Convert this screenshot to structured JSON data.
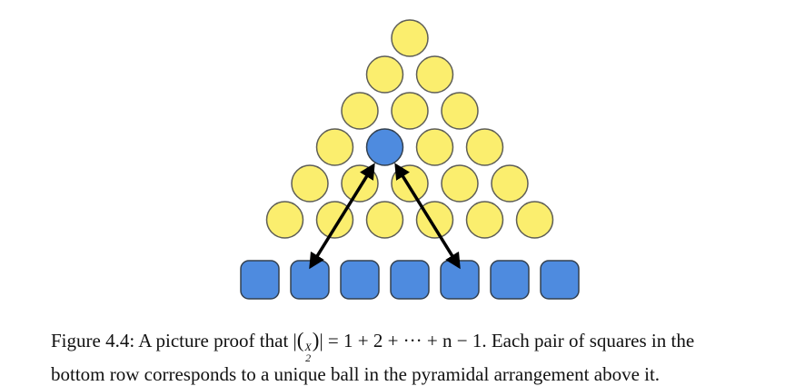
{
  "diagram": {
    "pyramid_row_counts": [
      1,
      2,
      3,
      4,
      5,
      6
    ],
    "highlighted_ball": {
      "row": 3,
      "index": 1
    },
    "bottom_square_count": 7,
    "arrow_targets": [
      1,
      4
    ],
    "colors": {
      "ball_fill": "#FBEE6E",
      "ball_stroke": "#5E5E57",
      "highlight_fill": "#4E8BDF",
      "highlight_stroke": "#33404F",
      "square_fill": "#4E8BDF",
      "square_stroke": "#33404F",
      "arrow": "#000000"
    }
  },
  "caption": {
    "prefix": "Figure 4.4: A picture proof that |",
    "binom_top": "X",
    "binom_bottom": "2",
    "suffix_line1": "| = 1 + 2 + ··· + n − 1. Each pair of squares in the",
    "line2": "bottom row corresponds to a unique ball in the pyramidal arrangement above it."
  }
}
